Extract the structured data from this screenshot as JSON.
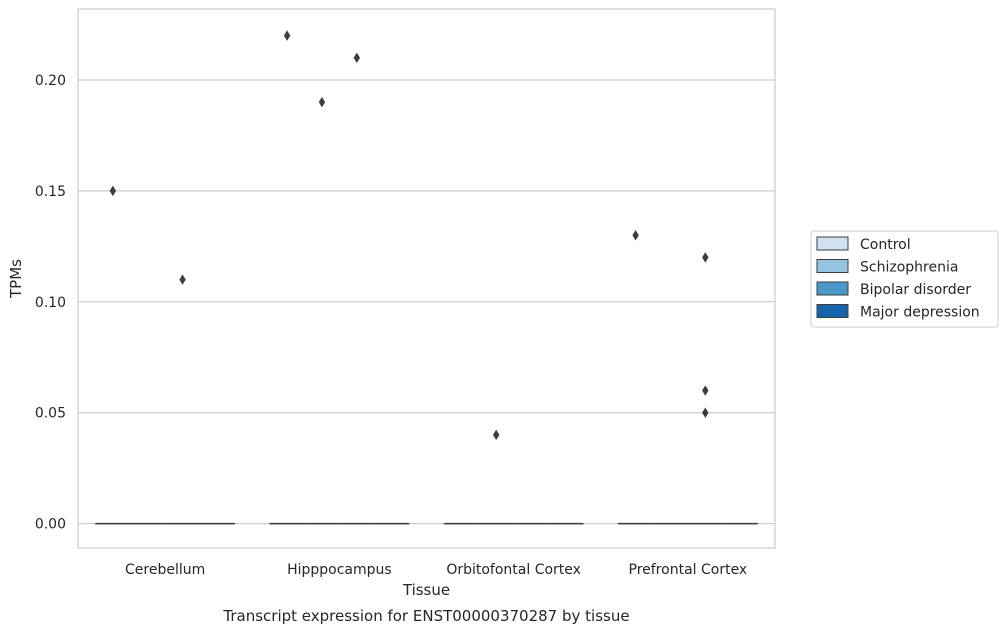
{
  "caption": "Transcript expression for ENST00000370287 by tissue",
  "chart_data": {
    "type": "box",
    "xlabel": "Tissue",
    "ylabel": "TPMs",
    "categories": [
      "Cerebellum",
      "Hipppocampus",
      "Orbitofontal Cortex",
      "Prefrontal Cortex"
    ],
    "ylim": [
      -0.011,
      0.232
    ],
    "yticks": [
      "0.00",
      "0.05",
      "0.10",
      "0.15",
      "0.20"
    ],
    "grid": "horizontal",
    "legend_position": "right",
    "series": [
      {
        "name": "Control",
        "color": "#d0e1f2",
        "boxes": [
          {
            "q1": 0,
            "median": 0,
            "q3": 0,
            "whisker_low": 0,
            "whisker_high": 0,
            "outliers": [
              0.15
            ]
          },
          {
            "q1": 0,
            "median": 0,
            "q3": 0,
            "whisker_low": 0,
            "whisker_high": 0,
            "outliers": [
              0.22
            ]
          },
          {
            "q1": 0,
            "median": 0,
            "q3": 0,
            "whisker_low": 0,
            "whisker_high": 0,
            "outliers": []
          },
          {
            "q1": 0,
            "median": 0,
            "q3": 0,
            "whisker_low": 0,
            "whisker_high": 0,
            "outliers": [
              0.13
            ]
          }
        ]
      },
      {
        "name": "Schizophrenia",
        "color": "#94c4df",
        "boxes": [
          {
            "q1": 0,
            "median": 0,
            "q3": 0,
            "whisker_low": 0,
            "whisker_high": 0,
            "outliers": []
          },
          {
            "q1": 0,
            "median": 0,
            "q3": 0,
            "whisker_low": 0,
            "whisker_high": 0,
            "outliers": [
              0.19
            ]
          },
          {
            "q1": 0,
            "median": 0,
            "q3": 0,
            "whisker_low": 0,
            "whisker_high": 0,
            "outliers": [
              0.04
            ]
          },
          {
            "q1": 0,
            "median": 0,
            "q3": 0,
            "whisker_low": 0,
            "whisker_high": 0,
            "outliers": []
          }
        ]
      },
      {
        "name": "Bipolar disorder",
        "color": "#4a98c9",
        "boxes": [
          {
            "q1": 0,
            "median": 0,
            "q3": 0,
            "whisker_low": 0,
            "whisker_high": 0,
            "outliers": [
              0.11
            ]
          },
          {
            "q1": 0,
            "median": 0,
            "q3": 0,
            "whisker_low": 0,
            "whisker_high": 0,
            "outliers": [
              0.21
            ]
          },
          {
            "q1": 0,
            "median": 0,
            "q3": 0,
            "whisker_low": 0,
            "whisker_high": 0,
            "outliers": []
          },
          {
            "q1": 0,
            "median": 0,
            "q3": 0,
            "whisker_low": 0,
            "whisker_high": 0,
            "outliers": [
              0.12,
              0.06,
              0.05
            ]
          }
        ]
      },
      {
        "name": "Major depression",
        "color": "#1764ab",
        "boxes": [
          {
            "q1": 0,
            "median": 0,
            "q3": 0,
            "whisker_low": 0,
            "whisker_high": 0,
            "outliers": []
          },
          {
            "q1": 0,
            "median": 0,
            "q3": 0,
            "whisker_low": 0,
            "whisker_high": 0,
            "outliers": []
          },
          {
            "q1": 0,
            "median": 0,
            "q3": 0,
            "whisker_low": 0,
            "whisker_high": 0,
            "outliers": []
          },
          {
            "q1": 0,
            "median": 0,
            "q3": 0,
            "whisker_low": 0,
            "whisker_high": 0,
            "outliers": []
          }
        ]
      }
    ]
  }
}
